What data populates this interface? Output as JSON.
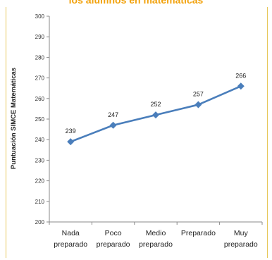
{
  "title_fragment": "los alumnos en matemáticas",
  "chart_data": {
    "type": "line",
    "categories": [
      [
        "Nada",
        "preparado"
      ],
      [
        "Poco",
        "preparado"
      ],
      [
        "Medio",
        "preparado"
      ],
      [
        "Preparado"
      ],
      [
        "Muy",
        "preparado"
      ]
    ],
    "series": [
      {
        "values": [
          239,
          247,
          252,
          257,
          266
        ]
      }
    ],
    "data_labels": [
      "239",
      "247",
      "252",
      "257",
      "266"
    ],
    "ylabel": "Puntuación SIMCE  Matemáticas",
    "xlabel": "",
    "ylim": [
      200,
      300
    ],
    "yticks": [
      200,
      210,
      220,
      230,
      240,
      250,
      260,
      270,
      280,
      290,
      300
    ],
    "grid": false,
    "legend": "none",
    "colors": {
      "line": "#4a7ebb",
      "marker": "#4a7ebb",
      "title": "#f2a20c",
      "frame": "#e6c75a"
    }
  }
}
